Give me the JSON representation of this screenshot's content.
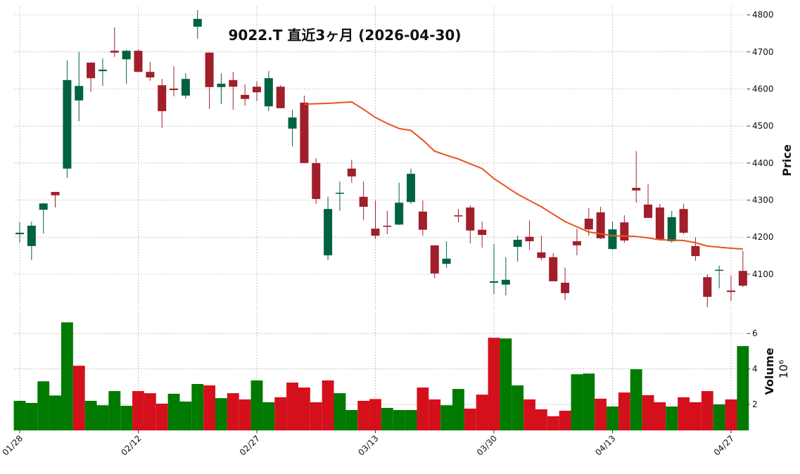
{
  "chart_data": [
    {
      "type": "candlestick",
      "title": "9022.T  直近3ヶ月  (2026-04-30)",
      "ylabel": "Price",
      "up_color": "#006340",
      "down_color": "#a11e2b",
      "open": [
        4208,
        4176,
        4274,
        4322,
        4385,
        4569,
        4671,
        4648,
        4703,
        4680,
        4703,
        4646,
        4610,
        4601,
        4582,
        4768,
        4698,
        4605,
        4624,
        4584,
        4606,
        4553,
        4606,
        4493,
        4563,
        4400,
        4151,
        4318,
        4385,
        4309,
        4223,
        4231,
        4234,
        4295,
        4269,
        4178,
        4128,
        4259,
        4280,
        4220,
        4077,
        4072,
        4174,
        4201,
        4159,
        4146,
        4077,
        4189,
        4250,
        4267,
        4168,
        4240,
        4333,
        4288,
        4280,
        4189,
        4276,
        4176,
        4092,
        4110,
        4056,
        4109
      ],
      "high": [
        4240,
        4242,
        4292,
        4322,
        4677,
        4700,
        4672,
        4682,
        4766,
        4705,
        4707,
        4673,
        4627,
        4661,
        4642,
        4813,
        4698,
        4642,
        4646,
        4612,
        4620,
        4648,
        4610,
        4544,
        4582,
        4413,
        4309,
        4350,
        4409,
        4350,
        4299,
        4271,
        4347,
        4385,
        4299,
        4178,
        4189,
        4276,
        4286,
        4242,
        4182,
        4146,
        4204,
        4245,
        4204,
        4157,
        4118,
        4223,
        4278,
        4282,
        4242,
        4259,
        4432,
        4343,
        4290,
        4271,
        4290,
        4199,
        4100,
        4123,
        4096,
        4163
      ],
      "low": [
        4185,
        4138,
        4210,
        4280,
        4360,
        4513,
        4592,
        4608,
        4686,
        4614,
        4646,
        4622,
        4495,
        4580,
        4574,
        4735,
        4546,
        4559,
        4544,
        4555,
        4567,
        4540,
        4548,
        4445,
        4400,
        4290,
        4138,
        4271,
        4347,
        4246,
        4195,
        4208,
        4233,
        4290,
        4204,
        4089,
        4117,
        4240,
        4183,
        4172,
        4047,
        4043,
        4134,
        4166,
        4138,
        4081,
        4030,
        4151,
        4204,
        4195,
        4166,
        4185,
        4293,
        4252,
        4195,
        4185,
        4208,
        4136,
        4011,
        4062,
        4028,
        4066
      ],
      "close": [
        4212,
        4231,
        4291,
        4313,
        4624,
        4608,
        4629,
        4652,
        4698,
        4703,
        4646,
        4631,
        4540,
        4597,
        4627,
        4789,
        4605,
        4614,
        4606,
        4573,
        4591,
        4629,
        4548,
        4523,
        4400,
        4303,
        4276,
        4320,
        4364,
        4282,
        4204,
        4228,
        4293,
        4371,
        4220,
        4102,
        4142,
        4256,
        4218,
        4206,
        4081,
        4085,
        4193,
        4189,
        4144,
        4081,
        4049,
        4178,
        4221,
        4197,
        4221,
        4191,
        4326,
        4252,
        4195,
        4254,
        4212,
        4149,
        4039,
        4112,
        4052,
        4069
      ],
      "moving_average": {
        "color": "#e8541b",
        "values": [
          null,
          null,
          null,
          null,
          null,
          null,
          null,
          null,
          null,
          null,
          null,
          null,
          null,
          null,
          null,
          null,
          null,
          null,
          null,
          null,
          null,
          null,
          null,
          null,
          4559,
          4560,
          4561,
          4563,
          4565,
          4545,
          4523,
          4507,
          4493,
          4488,
          4462,
          4432,
          4421,
          4411,
          4398,
          4385,
          4358,
          4337,
          4316,
          4299,
          4282,
          4262,
          4242,
          4228,
          4214,
          4209,
          4204,
          4203,
          4202,
          4198,
          4193,
          4192,
          4191,
          4185,
          4176,
          4173,
          4170,
          4168
        ]
      },
      "ylim": [
        4005,
        4821
      ],
      "yticks": [
        4100,
        4200,
        4300,
        4400,
        4500,
        4600,
        4700,
        4800
      ],
      "grid": true
    },
    {
      "type": "bar",
      "ylabel": "Volume",
      "multiplier": "10⁶",
      "categories": [
        "01/28",
        null,
        null,
        null,
        null,
        null,
        null,
        null,
        null,
        null,
        "02/12",
        null,
        null,
        null,
        null,
        null,
        null,
        null,
        null,
        null,
        "02/27",
        null,
        null,
        null,
        null,
        null,
        null,
        null,
        null,
        null,
        "03/13",
        null,
        null,
        null,
        null,
        null,
        null,
        null,
        null,
        null,
        "03/30",
        null,
        null,
        null,
        null,
        null,
        null,
        null,
        null,
        null,
        "04/13",
        null,
        null,
        null,
        null,
        null,
        null,
        null,
        null,
        null,
        "04/27",
        null
      ],
      "values": [
        2.2,
        2.08,
        3.3,
        2.5,
        6.63,
        4.18,
        2.2,
        1.95,
        2.75,
        1.92,
        2.75,
        2.63,
        2.04,
        2.6,
        2.16,
        3.15,
        3.07,
        2.35,
        2.63,
        2.28,
        3.35,
        2.12,
        2.4,
        3.23,
        2.95,
        2.12,
        3.35,
        2.63,
        1.68,
        2.2,
        2.3,
        1.8,
        1.68,
        1.68,
        2.95,
        2.28,
        1.95,
        2.87,
        1.76,
        2.55,
        5.76,
        5.72,
        3.07,
        2.28,
        1.72,
        1.33,
        1.64,
        3.7,
        3.74,
        2.32,
        1.88,
        2.67,
        3.98,
        2.52,
        2.12,
        1.88,
        2.4,
        2.12,
        2.75,
        2.0,
        2.28,
        5.29
      ],
      "colors": [
        "#007a00",
        "#007a00",
        "#007a00",
        "#007a00",
        "#007a00",
        "#d4101c",
        "#007a00",
        "#007a00",
        "#007a00",
        "#007a00",
        "#d4101c",
        "#d4101c",
        "#d4101c",
        "#007a00",
        "#007a00",
        "#007a00",
        "#d4101c",
        "#007a00",
        "#d4101c",
        "#d4101c",
        "#007a00",
        "#007a00",
        "#d4101c",
        "#d4101c",
        "#d4101c",
        "#d4101c",
        "#d4101c",
        "#007a00",
        "#007a00",
        "#d4101c",
        "#d4101c",
        "#007a00",
        "#007a00",
        "#007a00",
        "#d4101c",
        "#d4101c",
        "#007a00",
        "#007a00",
        "#d4101c",
        "#d4101c",
        "#d4101c",
        "#007a00",
        "#007a00",
        "#d4101c",
        "#d4101c",
        "#d4101c",
        "#d4101c",
        "#007a00",
        "#007a00",
        "#d4101c",
        "#007a00",
        "#d4101c",
        "#007a00",
        "#d4101c",
        "#d4101c",
        "#007a00",
        "#d4101c",
        "#d4101c",
        "#d4101c",
        "#007a00",
        "#d4101c",
        "#007a00"
      ],
      "ylim": [
        0.53,
        7.2
      ],
      "yticks": [
        2,
        4,
        6
      ],
      "grid": true
    }
  ]
}
